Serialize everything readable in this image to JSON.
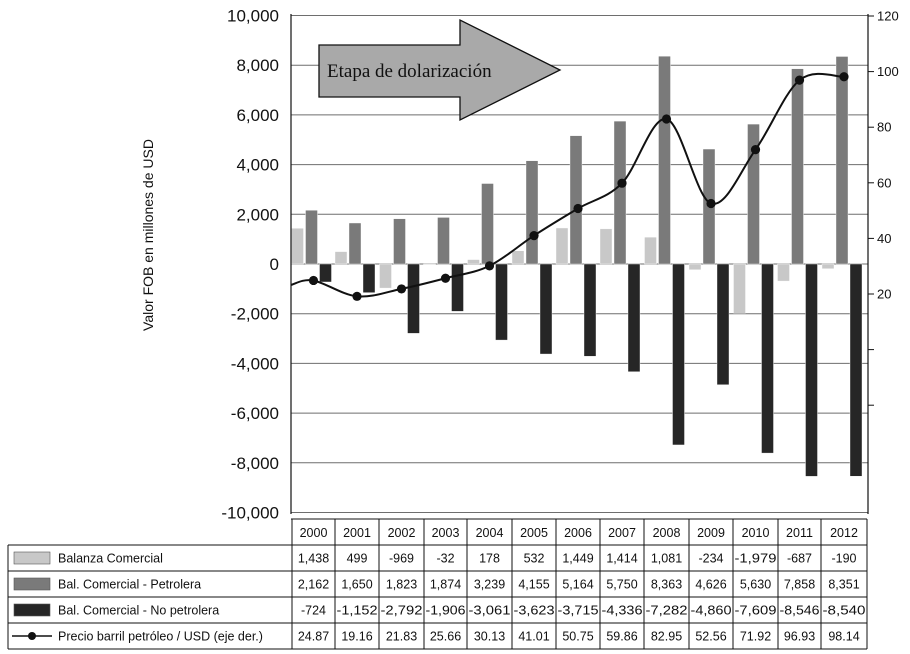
{
  "chart_data": {
    "type": "bar",
    "categories": [
      "2000",
      "2001",
      "2002",
      "2003",
      "2004",
      "2005",
      "2006",
      "2007",
      "2008",
      "2009",
      "2010",
      "2011",
      "2012"
    ],
    "series": [
      {
        "name": "Balanza Comercial",
        "kind": "bar",
        "axis": "left",
        "color": "#c8c8c8",
        "values": [
          1438,
          499,
          -969,
          -32,
          178,
          532,
          1449,
          1414,
          1081,
          -234,
          -1979,
          -687,
          -190
        ],
        "labels": [
          "1,438",
          "499",
          "-969",
          "-32",
          "178",
          "532",
          "1,449",
          "1,414",
          "1,081",
          "-234",
          "-1,979",
          "-687",
          "-190"
        ]
      },
      {
        "name": "Bal. Comercial - Petrolera",
        "kind": "bar",
        "axis": "left",
        "color": "#7a7a7a",
        "values": [
          2162,
          1650,
          1823,
          1874,
          3239,
          4155,
          5164,
          5750,
          8363,
          4626,
          5630,
          7858,
          8351
        ],
        "labels": [
          "2,162",
          "1,650",
          "1,823",
          "1,874",
          "3,239",
          "4,155",
          "5,164",
          "5,750",
          "8,363",
          "4,626",
          "5,630",
          "7,858",
          "8,351"
        ]
      },
      {
        "name": "Bal. Comercial - No petrolera",
        "kind": "bar",
        "axis": "left",
        "color": "#262626",
        "values": [
          -724,
          -1152,
          -2792,
          -1906,
          -3061,
          -3623,
          -3715,
          -4336,
          -7282,
          -4860,
          -7609,
          -8546,
          -8540
        ],
        "labels": [
          "-724",
          "-1,152",
          "-2,792",
          "-1,906",
          "-3,061",
          "-3,623",
          "-3,715",
          "-4,336",
          "-7,282",
          "-4,860",
          "-7,609",
          "-8,546",
          "-8,540"
        ]
      },
      {
        "name": "Precio barril petróleo / USD (eje der.)",
        "kind": "line",
        "axis": "right",
        "color": "#111111",
        "values": [
          24.87,
          19.16,
          21.83,
          25.66,
          30.13,
          41.01,
          50.75,
          59.86,
          82.95,
          52.56,
          71.92,
          96.93,
          98.14
        ],
        "labels": [
          "24.87",
          "19.16",
          "21.83",
          "25.66",
          "30.13",
          "41.01",
          "50.75",
          "59.86",
          "82.95",
          "52.56",
          "71.92",
          "96.93",
          "98.14"
        ]
      }
    ],
    "ylabel": "Valor FOB en millones de USD",
    "ylim": [
      -10000,
      10000
    ],
    "yticks": [
      "10,000",
      "8,000",
      "6,000",
      "4,000",
      "2,000",
      "0",
      "-2,000",
      "-4,000",
      "-6,000",
      "-8,000",
      "-10,000"
    ],
    "y2lim": [
      -20,
      120
    ],
    "y2ticks": [
      "120",
      "100",
      "80",
      "60",
      "40",
      "20"
    ],
    "grid": true,
    "annotation": "Etapa de dolarización",
    "legend": "data table below chart"
  }
}
